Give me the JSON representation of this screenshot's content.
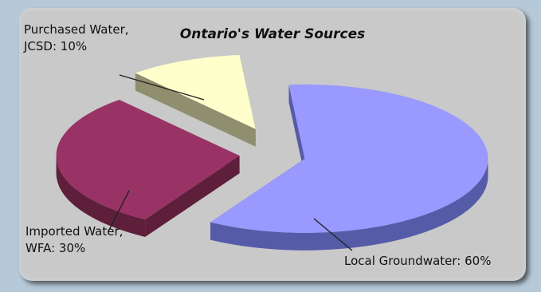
{
  "chart_data": {
    "type": "pie",
    "title": "Ontario's Water Sources",
    "three_d": true,
    "legend": "none",
    "slices": [
      {
        "category": "Local Groundwater",
        "value": 60,
        "label_lines": [
          "Local Groundwater: 60%"
        ],
        "color": "#9999ff",
        "side_color": "#565ba8"
      },
      {
        "category": "Imported Water, WFA",
        "value": 30,
        "label_lines": [
          "Imported Water,",
          "WFA: 30%"
        ],
        "color": "#993366",
        "side_color": "#5e1f3b"
      },
      {
        "category": "Purchased Water, JCSD",
        "value": 10,
        "label_lines": [
          "Purchased Water,",
          "JCSD: 10%"
        ],
        "color": "#ffffcc",
        "side_color": "#8f8f70"
      }
    ]
  }
}
